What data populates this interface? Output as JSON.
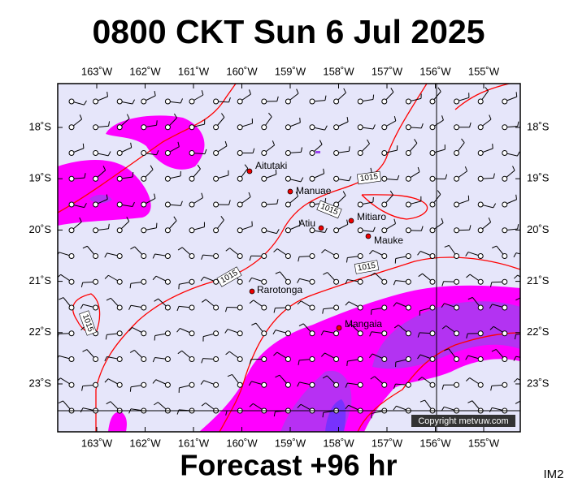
{
  "title": "0800 CKT Sun 6 Jul 2025",
  "footer": "Forecast +96 hr",
  "image_id": "IM2",
  "copyright": "Copyright metvuw.com",
  "longitude_labels": [
    "163˚W",
    "162˚W",
    "161˚W",
    "160˚W",
    "159˚W",
    "158˚W",
    "157˚W",
    "156˚W",
    "155˚W"
  ],
  "latitude_labels": [
    "18˚S",
    "19˚S",
    "20˚S",
    "21˚S",
    "22˚S",
    "23˚S"
  ],
  "places": [
    "Aitutaki",
    "Manuae",
    "Atiu",
    "Mitiaro",
    "Mauke",
    "Rarotonga",
    "Mangaia"
  ],
  "isobar_labels": [
    "1015",
    "1015",
    "1015",
    "1015",
    "1015"
  ]
}
